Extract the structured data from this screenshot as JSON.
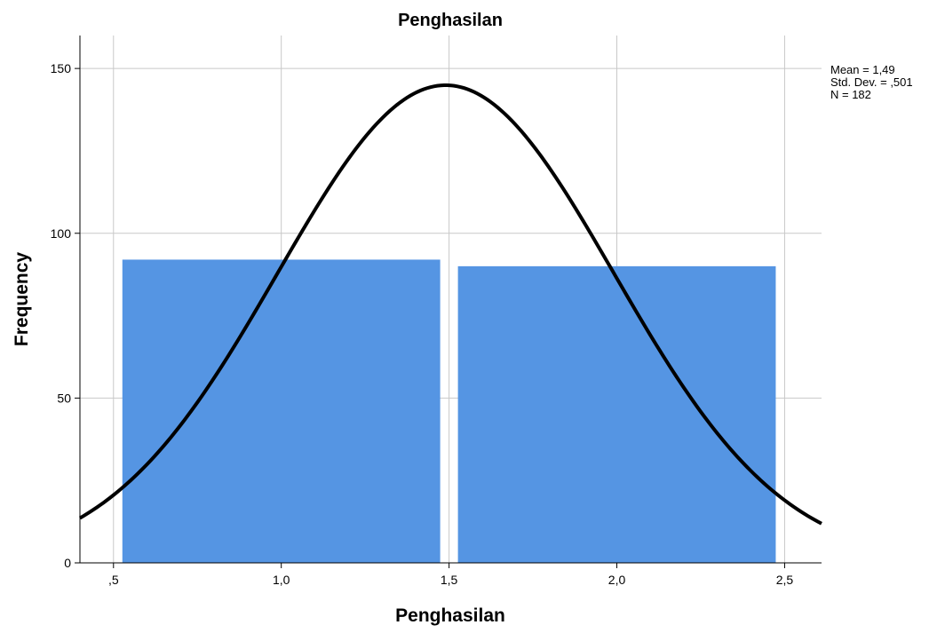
{
  "chart_data": {
    "type": "bar",
    "title": "Penghasilan",
    "xlabel": "Penghasilan",
    "ylabel": "Frequency",
    "xlim": [
      0.4,
      2.61
    ],
    "ylim": [
      0,
      160
    ],
    "x_ticks": [
      {
        "value": 0.5,
        "label": ",5"
      },
      {
        "value": 1.0,
        "label": "1,0"
      },
      {
        "value": 1.5,
        "label": "1,5"
      },
      {
        "value": 2.0,
        "label": "2,0"
      },
      {
        "value": 2.5,
        "label": "2,5"
      }
    ],
    "y_ticks": [
      {
        "value": 0,
        "label": "0"
      },
      {
        "value": 50,
        "label": "50"
      },
      {
        "value": 100,
        "label": "100"
      },
      {
        "value": 150,
        "label": "150"
      }
    ],
    "bins": [
      {
        "from": 0.5,
        "to": 1.5,
        "value": 92
      },
      {
        "from": 1.5,
        "to": 2.5,
        "value": 90
      }
    ],
    "normal_curve": {
      "mean": 1.49,
      "std_dev": 0.501,
      "n": 182,
      "bin_width": 1.0
    },
    "stats": [
      "Mean = 1,49",
      "Std. Dev. = ,501",
      "N = 182"
    ],
    "grid": true,
    "bar_color": "#5595e3",
    "curve_color": "#000000",
    "grid_color": "#c8c8c8"
  }
}
